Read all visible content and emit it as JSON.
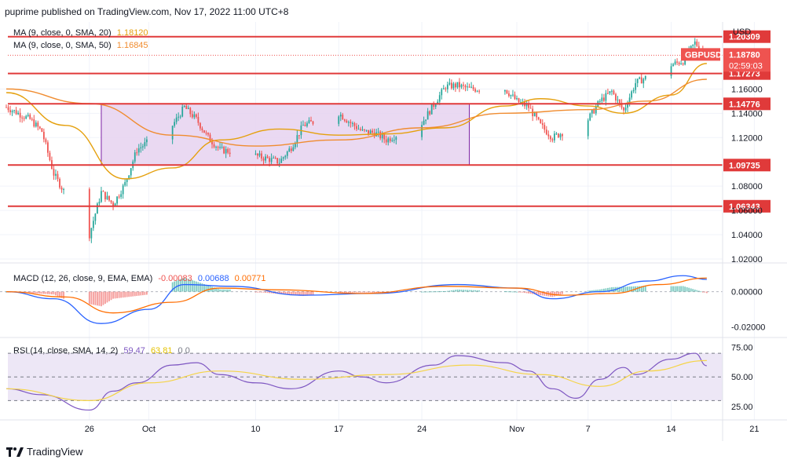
{
  "header": {
    "published": "puprime published on TradingView.com, Nov 17, 2022 11:00 UTC+8"
  },
  "footer": {
    "brand": "TradingView"
  },
  "colors": {
    "up": "#26a69a",
    "down": "#ef5350",
    "ma20": "#e5a00d",
    "ma50": "#f08c30",
    "level": "#e03a3a",
    "box_fill": "#e6d2f0",
    "box_stroke": "#7b1fa2",
    "macd": "#2962ff",
    "signal": "#ff6d00",
    "rsi": "#7e57c2",
    "rsi_ma": "#f5d447",
    "rsi_band": "#ede7f6",
    "grid": "#f0f3fa",
    "axis_text": "#131722"
  },
  "legend": {
    "ma20_label": "MA (9, close, 0, SMA, 20)",
    "ma20_value": "1.18120",
    "ma50_label": "MA (9, close, 0, SMA, 50)",
    "ma50_value": "1.16845",
    "macd_label": "MACD (12, 26, close, 9, EMA, EMA)",
    "macd_hist": "-0.00083",
    "macd_line": "0.00688",
    "macd_signal": "0.00771",
    "rsi_label": "RSI (14, close, SMA, 14, 2)",
    "rsi_value": "59.47",
    "rsi_ma_value": "63.81",
    "rsi_extra": "0  0"
  },
  "chart_data": [
    {
      "type": "candlestick",
      "title": "",
      "ylabel": "USD",
      "symbol_badge": "GBPUSD",
      "last_price": "1.18780",
      "countdown": "02:59:03",
      "ylim": [
        1.02,
        1.21
      ],
      "y_ticks": [
        "1.16000",
        "1.14000",
        "1.12000",
        "1.08000",
        "1.06000",
        "1.04000",
        "1.02000"
      ],
      "x_ticks": [
        "26",
        "Oct",
        "10",
        "17",
        "24",
        "Nov",
        "7",
        "14",
        "21"
      ],
      "x_dates": [
        "2022-09-19",
        "2022-11-18"
      ],
      "horizontal_levels": [
        {
          "label": "1.20309",
          "value": 1.20309
        },
        {
          "label": "1.17273",
          "value": 1.17273
        },
        {
          "label": "1.14776",
          "value": 1.14776
        },
        {
          "label": "1.09735",
          "value": 1.09735
        },
        {
          "label": "1.06343",
          "value": 1.06343
        }
      ],
      "range_box": {
        "x_start": "2022-09-27",
        "x_end": "2022-10-28",
        "y_low": 1.09735,
        "y_high": 1.14776
      },
      "price_path": [
        [
          "2022-09-19",
          1.145
        ],
        [
          "2022-09-21",
          1.135
        ],
        [
          "2022-09-22",
          1.125
        ],
        [
          "2022-09-23",
          1.09
        ],
        [
          "2022-09-26",
          1.04
        ],
        [
          "2022-09-27",
          1.075
        ],
        [
          "2022-09-28",
          1.065
        ],
        [
          "2022-09-29",
          1.082
        ],
        [
          "2022-09-30",
          1.11
        ],
        [
          "2022-10-03",
          1.13
        ],
        [
          "2022-10-04",
          1.145
        ],
        [
          "2022-10-05",
          1.135
        ],
        [
          "2022-10-06",
          1.12
        ],
        [
          "2022-10-07",
          1.11
        ],
        [
          "2022-10-10",
          1.105
        ],
        [
          "2022-10-12",
          1.1
        ],
        [
          "2022-10-13",
          1.112
        ],
        [
          "2022-10-14",
          1.13
        ],
        [
          "2022-10-17",
          1.14
        ],
        [
          "2022-10-18",
          1.132
        ],
        [
          "2022-10-19",
          1.125
        ],
        [
          "2022-10-20",
          1.124
        ],
        [
          "2022-10-21",
          1.118
        ],
        [
          "2022-10-24",
          1.132
        ],
        [
          "2022-10-25",
          1.147
        ],
        [
          "2022-10-26",
          1.162
        ],
        [
          "2022-10-27",
          1.163
        ],
        [
          "2022-10-28",
          1.16
        ],
        [
          "2022-10-31",
          1.16
        ],
        [
          "2022-11-01",
          1.15
        ],
        [
          "2022-11-02",
          1.145
        ],
        [
          "2022-11-03",
          1.13
        ],
        [
          "2022-11-04",
          1.12
        ],
        [
          "2022-11-07",
          1.135
        ],
        [
          "2022-11-08",
          1.15
        ],
        [
          "2022-11-09",
          1.158
        ],
        [
          "2022-11-10",
          1.142
        ],
        [
          "2022-11-11",
          1.165
        ],
        [
          "2022-11-14",
          1.18
        ],
        [
          "2022-11-15",
          1.183
        ],
        [
          "2022-11-16",
          1.198
        ],
        [
          "2022-11-17",
          1.1878
        ]
      ],
      "ma_series": [
        {
          "name": "MA (9, close, 0, SMA, 20)",
          "color_key": "ma20",
          "points": [
            [
              "2022-09-19",
              1.157
            ],
            [
              "2022-09-24",
              1.13
            ],
            [
              "2022-09-29",
              1.086
            ],
            [
              "2022-10-03",
              1.095
            ],
            [
              "2022-10-07",
              1.118
            ],
            [
              "2022-10-12",
              1.127
            ],
            [
              "2022-10-17",
              1.122
            ],
            [
              "2022-10-21",
              1.123
            ],
            [
              "2022-10-26",
              1.128
            ],
            [
              "2022-10-31",
              1.146
            ],
            [
              "2022-11-03",
              1.152
            ],
            [
              "2022-11-07",
              1.146
            ],
            [
              "2022-11-10",
              1.14
            ],
            [
              "2022-11-14",
              1.155
            ],
            [
              "2022-11-17",
              1.181
            ]
          ]
        },
        {
          "name": "MA (9, close, 0, SMA, 50)",
          "color_key": "ma50",
          "points": [
            [
              "2022-09-19",
              1.16
            ],
            [
              "2022-09-26",
              1.148
            ],
            [
              "2022-10-03",
              1.122
            ],
            [
              "2022-10-10",
              1.113
            ],
            [
              "2022-10-17",
              1.118
            ],
            [
              "2022-10-24",
              1.128
            ],
            [
              "2022-10-31",
              1.14
            ],
            [
              "2022-11-07",
              1.143
            ],
            [
              "2022-11-12",
              1.15
            ],
            [
              "2022-11-17",
              1.168
            ]
          ]
        }
      ]
    },
    {
      "type": "line",
      "title": "",
      "ylim": [
        -0.025,
        0.014
      ],
      "y_ticks": [
        "0.00000",
        "-0.02000"
      ],
      "series": [
        {
          "name": "MACD",
          "color_key": "macd",
          "points": [
            [
              "2022-09-19",
              0.0
            ],
            [
              "2022-09-23",
              -0.004
            ],
            [
              "2022-09-27",
              -0.018
            ],
            [
              "2022-10-01",
              -0.01
            ],
            [
              "2022-10-04",
              0.004
            ],
            [
              "2022-10-08",
              0.003
            ],
            [
              "2022-10-14",
              -0.002
            ],
            [
              "2022-10-20",
              -0.001
            ],
            [
              "2022-10-27",
              0.004
            ],
            [
              "2022-11-01",
              0.002
            ],
            [
              "2022-11-04",
              -0.004
            ],
            [
              "2022-11-08",
              0.0
            ],
            [
              "2022-11-12",
              0.006
            ],
            [
              "2022-11-15",
              0.009
            ],
            [
              "2022-11-17",
              0.0069
            ]
          ]
        },
        {
          "name": "Signal",
          "color_key": "signal",
          "points": [
            [
              "2022-09-19",
              0.0
            ],
            [
              "2022-09-24",
              -0.003
            ],
            [
              "2022-09-28",
              -0.012
            ],
            [
              "2022-10-03",
              -0.006
            ],
            [
              "2022-10-07",
              0.002
            ],
            [
              "2022-10-12",
              0.001
            ],
            [
              "2022-10-19",
              -0.001
            ],
            [
              "2022-10-26",
              0.003
            ],
            [
              "2022-11-01",
              0.002
            ],
            [
              "2022-11-05",
              -0.002
            ],
            [
              "2022-11-09",
              -0.001
            ],
            [
              "2022-11-13",
              0.004
            ],
            [
              "2022-11-17",
              0.0077
            ]
          ]
        }
      ],
      "histogram_color_keys": [
        "up",
        "down"
      ]
    },
    {
      "type": "line",
      "title": "",
      "ylim": [
        15,
        80
      ],
      "y_ticks": [
        "75.00",
        "50.00",
        "25.00"
      ],
      "bands": [
        70,
        50,
        30
      ],
      "series": [
        {
          "name": "RSI",
          "color_key": "rsi",
          "points": [
            [
              "2022-09-19",
              40
            ],
            [
              "2022-09-22",
              35
            ],
            [
              "2022-09-26",
              22
            ],
            [
              "2022-09-28",
              38
            ],
            [
              "2022-09-30",
              45
            ],
            [
              "2022-10-03",
              60
            ],
            [
              "2022-10-05",
              62
            ],
            [
              "2022-10-07",
              52
            ],
            [
              "2022-10-10",
              45
            ],
            [
              "2022-10-13",
              40
            ],
            [
              "2022-10-17",
              55
            ],
            [
              "2022-10-19",
              50
            ],
            [
              "2022-10-21",
              45
            ],
            [
              "2022-10-25",
              60
            ],
            [
              "2022-10-27",
              68
            ],
            [
              "2022-10-31",
              62
            ],
            [
              "2022-11-02",
              55
            ],
            [
              "2022-11-04",
              40
            ],
            [
              "2022-11-06",
              32
            ],
            [
              "2022-11-08",
              48
            ],
            [
              "2022-11-10",
              58
            ],
            [
              "2022-11-11",
              52
            ],
            [
              "2022-11-14",
              65
            ],
            [
              "2022-11-16",
              70
            ],
            [
              "2022-11-17",
              59.47
            ]
          ]
        },
        {
          "name": "RSI MA",
          "color_key": "rsi_ma",
          "points": [
            [
              "2022-09-19",
              40
            ],
            [
              "2022-09-26",
              30
            ],
            [
              "2022-10-01",
              45
            ],
            [
              "2022-10-07",
              55
            ],
            [
              "2022-10-14",
              48
            ],
            [
              "2022-10-21",
              52
            ],
            [
              "2022-10-28",
              60
            ],
            [
              "2022-11-03",
              52
            ],
            [
              "2022-11-08",
              42
            ],
            [
              "2022-11-12",
              55
            ],
            [
              "2022-11-17",
              63.81
            ]
          ]
        }
      ]
    }
  ]
}
